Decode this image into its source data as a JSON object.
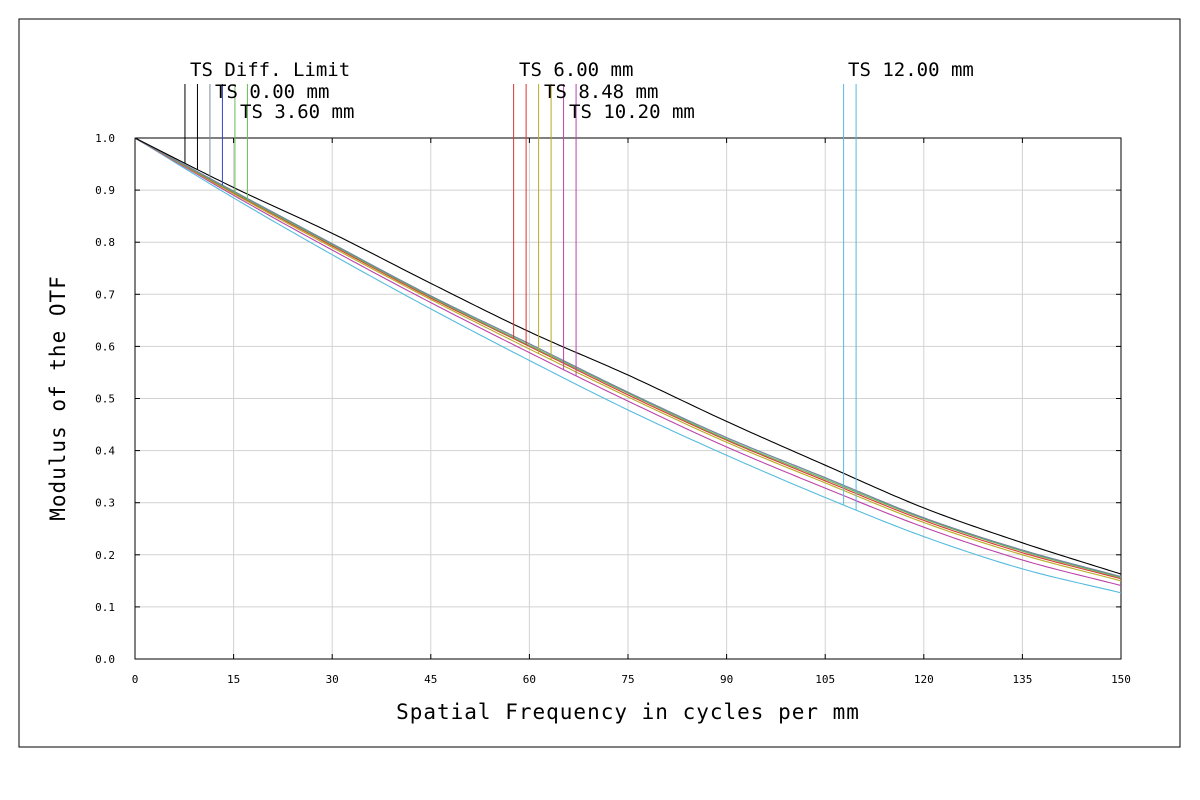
{
  "chart_data": {
    "type": "line",
    "xlabel": "Spatial Frequency in cycles per mm",
    "ylabel": "Modulus of the OTF",
    "xlim": [
      0,
      150
    ],
    "ylim": [
      0,
      1.0
    ],
    "x_ticks": [
      "0",
      "15",
      "30",
      "45",
      "60",
      "75",
      "90",
      "105",
      "120",
      "135",
      "150"
    ],
    "y_ticks": [
      "0.0",
      "0.1",
      "0.2",
      "0.3",
      "0.4",
      "0.5",
      "0.6",
      "0.7",
      "0.8",
      "0.9",
      "1.0"
    ],
    "grid": true,
    "x": [
      0,
      15,
      30,
      45,
      60,
      75,
      90,
      105,
      120,
      135,
      150
    ],
    "legend_labels": [
      "TS Diff. Limit",
      "TS 0.00 mm",
      "TS 3.60 mm",
      "TS 6.00 mm",
      "TS 8.48 mm",
      "TS 10.20 mm",
      "TS 12.00 mm"
    ],
    "series": [
      {
        "name": "TS Diff. Limit",
        "color": "#000000",
        "values": [
          1.0,
          0.905,
          0.817,
          0.721,
          0.628,
          0.545,
          0.456,
          0.372,
          0.29,
          0.223,
          0.163
        ]
      },
      {
        "name": "TS 0.00 mm",
        "color": "#7a8c99",
        "values": [
          1.0,
          0.898,
          0.797,
          0.697,
          0.605,
          0.512,
          0.425,
          0.348,
          0.271,
          0.209,
          0.158
        ]
      },
      {
        "name": "TS 0.00 mm",
        "color": "#3344cc",
        "values": [
          1.0,
          0.898,
          0.797,
          0.697,
          0.605,
          0.512,
          0.425,
          0.348,
          0.271,
          0.209,
          0.158
        ]
      },
      {
        "name": "TS 3.60 mm",
        "color": "#66bb55",
        "values": [
          1.0,
          0.896,
          0.795,
          0.695,
          0.602,
          0.51,
          0.422,
          0.345,
          0.269,
          0.207,
          0.156
        ]
      },
      {
        "name": "TS 6.00 mm",
        "color": "#dd3333",
        "values": [
          1.0,
          0.895,
          0.793,
          0.693,
          0.6,
          0.507,
          0.42,
          0.342,
          0.266,
          0.204,
          0.154
        ]
      },
      {
        "name": "TS 8.48 mm",
        "color": "#bbaa22",
        "values": [
          1.0,
          0.893,
          0.79,
          0.69,
          0.595,
          0.503,
          0.416,
          0.338,
          0.262,
          0.2,
          0.15
        ]
      },
      {
        "name": "TS 10.20 mm",
        "color": "#bb44aa",
        "values": [
          1.0,
          0.89,
          0.785,
          0.684,
          0.588,
          0.495,
          0.407,
          0.328,
          0.253,
          0.19,
          0.141
        ]
      },
      {
        "name": "TS 12.00 mm",
        "color": "#55bbdd",
        "values": [
          1.0,
          0.885,
          0.776,
          0.672,
          0.573,
          0.478,
          0.391,
          0.31,
          0.235,
          0.173,
          0.127
        ]
      }
    ],
    "markers": [
      {
        "series": 0,
        "x": 7.6
      },
      {
        "series": 0,
        "x": 9.5
      },
      {
        "series": 1,
        "x": 11.4
      },
      {
        "series": 2,
        "x": 13.3
      },
      {
        "series": 3,
        "x": 15.2
      },
      {
        "series": 3,
        "x": 17.1
      },
      {
        "series": 4,
        "x": 57.6
      },
      {
        "series": 4,
        "x": 59.5
      },
      {
        "series": 5,
        "x": 61.4
      },
      {
        "series": 5,
        "x": 63.3
      },
      {
        "series": 6,
        "x": 65.2
      },
      {
        "series": 6,
        "x": 67.1
      },
      {
        "series": 7,
        "x": 107.8
      },
      {
        "series": 7,
        "x": 109.7
      }
    ]
  }
}
